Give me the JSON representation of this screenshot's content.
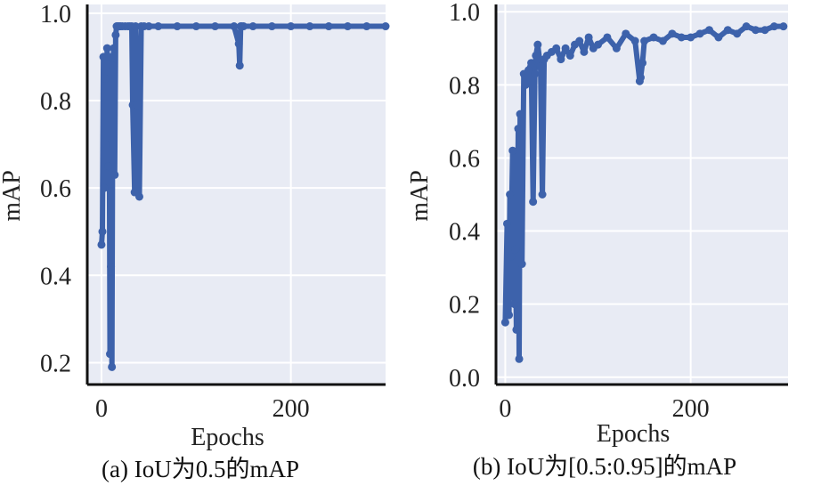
{
  "chart_data": [
    {
      "type": "line",
      "caption": "(a) IoU为0.5的mAP",
      "xlabel": "Epochs",
      "ylabel": "mAP",
      "xticks": [
        0,
        200
      ],
      "yticks": [
        0.2,
        0.4,
        0.6,
        0.8,
        1.0
      ],
      "xlim": [
        -15,
        300
      ],
      "ylim": [
        0.15,
        1.02
      ],
      "grid": true,
      "series": [
        {
          "color": "#3d62ab",
          "x": [
            0,
            1,
            2,
            3,
            4,
            5,
            6,
            7,
            8,
            9,
            10,
            11,
            12,
            13,
            14,
            15,
            16,
            17,
            18,
            19,
            20,
            22,
            25,
            28,
            30,
            32,
            33,
            35,
            36,
            38,
            40,
            42,
            45,
            50,
            60,
            80,
            100,
            120,
            140,
            145,
            146,
            147,
            148,
            150,
            160,
            180,
            200,
            220,
            240,
            260,
            280,
            300
          ],
          "y": [
            0.47,
            0.5,
            0.9,
            0.6,
            0.85,
            0.7,
            0.92,
            0.65,
            0.9,
            0.22,
            0.42,
            0.19,
            0.88,
            0.92,
            0.63,
            0.95,
            0.97,
            0.97,
            0.97,
            0.97,
            0.97,
            0.97,
            0.97,
            0.97,
            0.97,
            0.97,
            0.79,
            0.59,
            0.97,
            0.79,
            0.58,
            0.97,
            0.97,
            0.97,
            0.97,
            0.97,
            0.97,
            0.97,
            0.97,
            0.93,
            0.88,
            0.97,
            0.97,
            0.97,
            0.97,
            0.97,
            0.97,
            0.97,
            0.97,
            0.97,
            0.97,
            0.97
          ]
        }
      ]
    },
    {
      "type": "line",
      "caption": "(b) IoU为[0.5:0.95]的mAP",
      "xlabel": "Epochs",
      "ylabel": "mAP",
      "xticks": [
        0,
        200
      ],
      "yticks": [
        0.0,
        0.2,
        0.4,
        0.6,
        0.8,
        1.0
      ],
      "xlim": [
        -10,
        305
      ],
      "ylim": [
        -0.02,
        1.02
      ],
      "grid": true,
      "series": [
        {
          "color": "#3d62ab",
          "x": [
            0,
            2,
            4,
            5,
            6,
            8,
            10,
            11,
            12,
            14,
            15,
            16,
            18,
            20,
            22,
            25,
            28,
            30,
            32,
            33,
            35,
            38,
            40,
            42,
            45,
            50,
            55,
            60,
            65,
            70,
            75,
            80,
            85,
            90,
            95,
            100,
            110,
            120,
            130,
            140,
            145,
            146,
            148,
            150,
            160,
            170,
            180,
            190,
            200,
            210,
            220,
            230,
            240,
            250,
            260,
            270,
            280,
            290,
            300
          ],
          "y": [
            0.15,
            0.42,
            0.17,
            0.5,
            0.33,
            0.62,
            0.2,
            0.35,
            0.13,
            0.68,
            0.05,
            0.72,
            0.31,
            0.83,
            0.8,
            0.84,
            0.86,
            0.48,
            0.83,
            0.88,
            0.91,
            0.85,
            0.5,
            0.87,
            0.88,
            0.89,
            0.9,
            0.87,
            0.9,
            0.88,
            0.91,
            0.92,
            0.89,
            0.93,
            0.9,
            0.91,
            0.93,
            0.9,
            0.94,
            0.92,
            0.81,
            0.82,
            0.86,
            0.92,
            0.93,
            0.92,
            0.94,
            0.93,
            0.93,
            0.94,
            0.95,
            0.93,
            0.95,
            0.94,
            0.96,
            0.95,
            0.95,
            0.96,
            0.96
          ]
        }
      ]
    }
  ]
}
